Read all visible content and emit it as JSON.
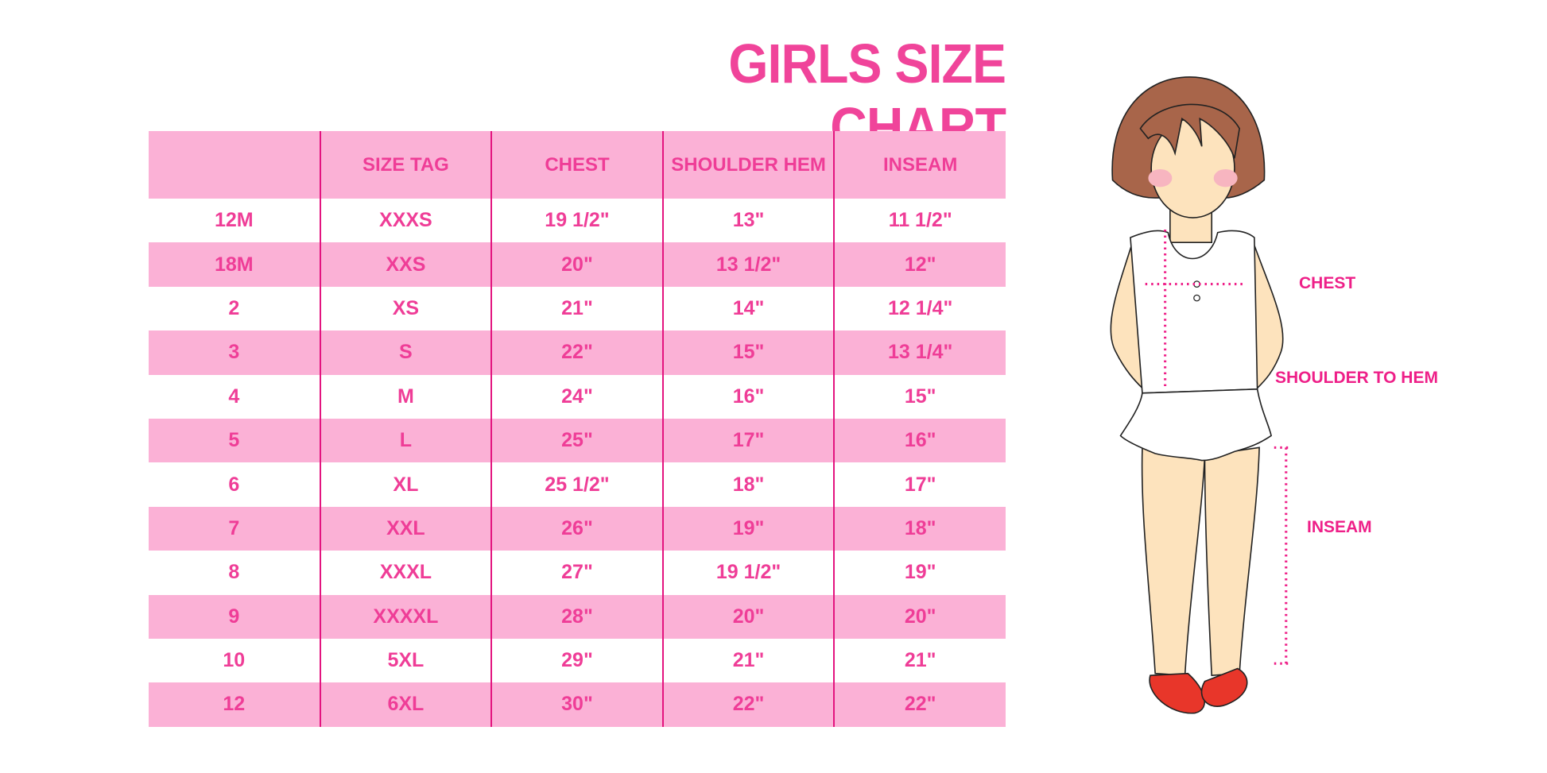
{
  "title": "GIRLS SIZE CHART",
  "table": {
    "headers": [
      "",
      "SIZE TAG",
      "CHEST",
      "SHOULDER HEM",
      "INSEAM"
    ],
    "rows": [
      [
        "12M",
        "XXXS",
        "19 1/2\"",
        "13\"",
        "11 1/2\""
      ],
      [
        "18M",
        "XXS",
        "20\"",
        "13 1/2\"",
        "12\""
      ],
      [
        "2",
        "XS",
        "21\"",
        "14\"",
        "12 1/4\""
      ],
      [
        "3",
        "S",
        "22\"",
        "15\"",
        "13 1/4\""
      ],
      [
        "4",
        "M",
        "24\"",
        "16\"",
        "15\""
      ],
      [
        "5",
        "L",
        "25\"",
        "17\"",
        "16\""
      ],
      [
        "6",
        "XL",
        "25 1/2\"",
        "18\"",
        "17\""
      ],
      [
        "7",
        "XXL",
        "26\"",
        "19\"",
        "18\""
      ],
      [
        "8",
        "XXXL",
        "27\"",
        "19 1/2\"",
        "19\""
      ],
      [
        "9",
        "XXXXL",
        "28\"",
        "20\"",
        "20\""
      ],
      [
        "10",
        "5XL",
        "29\"",
        "21\"",
        "21\""
      ],
      [
        "12",
        "6XL",
        "30\"",
        "22\"",
        "22\""
      ]
    ]
  },
  "figure": {
    "labels": {
      "chest": "CHEST",
      "shoulder_to_hem": "SHOULDER TO HEM",
      "inseam": "INSEAM"
    }
  },
  "colors": {
    "accent": "#ef3d97",
    "row_band": "#fbb1d6",
    "divider": "#e3147f"
  }
}
